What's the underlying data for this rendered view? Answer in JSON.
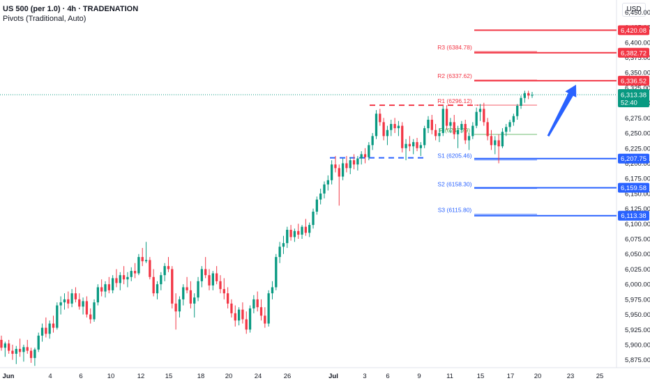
{
  "header": {
    "title": "US 500 (per 1.0) · 4h · TRADENATION",
    "subtitle": "Pivots (Traditional, Auto)"
  },
  "currency_button": "USD",
  "chart_data": {
    "type": "candlestick",
    "y_axis_ticks": [
      "5,875.00",
      "5,900.00",
      "5,925.00",
      "5,950.00",
      "5,975.00",
      "6,000.00",
      "6,025.00",
      "6,050.00",
      "6,075.00",
      "6,100.00",
      "6,125.00",
      "6,150.00",
      "6,175.00",
      "6,200.00",
      "6,225.00",
      "6,250.00",
      "6,275.00",
      "6,300.00",
      "6,325.00",
      "6,350.00",
      "6,375.00",
      "6,400.00",
      "6,425.00",
      "6,450.00"
    ],
    "y_tick_values": [
      5875,
      5900,
      5925,
      5950,
      5975,
      6000,
      6025,
      6050,
      6075,
      6100,
      6125,
      6150,
      6175,
      6200,
      6225,
      6250,
      6275,
      6300,
      6325,
      6350,
      6375,
      6400,
      6425,
      6450
    ],
    "ylim": [
      5862,
      6470
    ],
    "x_axis_labels": [
      "Jun",
      "4",
      "6",
      "10",
      "12",
      "15",
      "18",
      "20",
      "24",
      "26",
      "Jul",
      "3",
      "6",
      "9",
      "11",
      "15",
      "17",
      "20",
      "23",
      "25"
    ],
    "pivots": [
      {
        "label": "R3 (6384.78)",
        "value": 6384.78,
        "color": "#f23645"
      },
      {
        "label": "R2 (6337.62)",
        "value": 6337.62,
        "color": "#f23645"
      },
      {
        "label": "R1 (6296.12)",
        "value": 6296.12,
        "color": "#f23645"
      },
      {
        "label": "P (6247.79)",
        "value": 6247.79,
        "color": "#4caf50"
      },
      {
        "label": "S1 (6205.46)",
        "value": 6205.46,
        "color": "#2962ff"
      },
      {
        "label": "S2 (6158.30)",
        "value": 6158.3,
        "color": "#2962ff"
      },
      {
        "label": "S3 (6115.80)",
        "value": 6115.8,
        "color": "#2962ff"
      }
    ],
    "resistance_levels": [
      6420.08,
      6382.72,
      6336.52
    ],
    "support_levels": [
      6207.75,
      6159.58,
      6113.38
    ],
    "dashed_resistance": 6296,
    "dashed_support": 6209,
    "price_labels": [
      {
        "text": "6,420.08",
        "value": 6420.08,
        "color": "#f23645"
      },
      {
        "text": "6,382.72",
        "value": 6382.72,
        "color": "#f23645"
      },
      {
        "text": "6,336.52",
        "value": 6336.52,
        "color": "#f23645"
      },
      {
        "text": "6,207.75",
        "value": 6207.75,
        "color": "#2962ff"
      },
      {
        "text": "6,159.58",
        "value": 6159.58,
        "color": "#2962ff"
      },
      {
        "text": "6,113.38",
        "value": 6113.38,
        "color": "#2962ff"
      }
    ],
    "current_price": {
      "value": 6313.38,
      "text": "6,313.38",
      "countdown": "52:40",
      "color": "#089981"
    },
    "arrow": {
      "from": 6245,
      "to": 6330,
      "color": "#2962ff"
    },
    "candles": [
      {
        "o": 5908,
        "h": 5915,
        "l": 5890,
        "c": 5895
      },
      {
        "o": 5895,
        "h": 5905,
        "l": 5880,
        "c": 5902
      },
      {
        "o": 5902,
        "h": 5908,
        "l": 5885,
        "c": 5890
      },
      {
        "o": 5890,
        "h": 5900,
        "l": 5875,
        "c": 5885
      },
      {
        "o": 5885,
        "h": 5898,
        "l": 5868,
        "c": 5893
      },
      {
        "o": 5893,
        "h": 5910,
        "l": 5880,
        "c": 5888
      },
      {
        "o": 5888,
        "h": 5900,
        "l": 5872,
        "c": 5896
      },
      {
        "o": 5896,
        "h": 5908,
        "l": 5885,
        "c": 5890
      },
      {
        "o": 5890,
        "h": 5895,
        "l": 5870,
        "c": 5878
      },
      {
        "o": 5878,
        "h": 5895,
        "l": 5865,
        "c": 5892
      },
      {
        "o": 5892,
        "h": 5920,
        "l": 5888,
        "c": 5915
      },
      {
        "o": 5915,
        "h": 5935,
        "l": 5905,
        "c": 5928
      },
      {
        "o": 5928,
        "h": 5945,
        "l": 5912,
        "c": 5918
      },
      {
        "o": 5918,
        "h": 5940,
        "l": 5910,
        "c": 5935
      },
      {
        "o": 5935,
        "h": 5948,
        "l": 5920,
        "c": 5928
      },
      {
        "o": 5928,
        "h": 5970,
        "l": 5925,
        "c": 5965
      },
      {
        "o": 5965,
        "h": 5980,
        "l": 5950,
        "c": 5970
      },
      {
        "o": 5970,
        "h": 5985,
        "l": 5958,
        "c": 5975
      },
      {
        "o": 5975,
        "h": 5988,
        "l": 5960,
        "c": 5968
      },
      {
        "o": 5968,
        "h": 5992,
        "l": 5962,
        "c": 5985
      },
      {
        "o": 5985,
        "h": 5995,
        "l": 5970,
        "c": 5975
      },
      {
        "o": 5975,
        "h": 5985,
        "l": 5958,
        "c": 5963
      },
      {
        "o": 5963,
        "h": 5978,
        "l": 5950,
        "c": 5972
      },
      {
        "o": 5972,
        "h": 5980,
        "l": 5945,
        "c": 5950
      },
      {
        "o": 5950,
        "h": 5960,
        "l": 5935,
        "c": 5942
      },
      {
        "o": 5942,
        "h": 5975,
        "l": 5938,
        "c": 5970
      },
      {
        "o": 5970,
        "h": 6000,
        "l": 5965,
        "c": 5995
      },
      {
        "o": 5995,
        "h": 6008,
        "l": 5980,
        "c": 5988
      },
      {
        "o": 5988,
        "h": 6005,
        "l": 5978,
        "c": 6000
      },
      {
        "o": 6000,
        "h": 6012,
        "l": 5985,
        "c": 5990
      },
      {
        "o": 5990,
        "h": 6015,
        "l": 5985,
        "c": 6010
      },
      {
        "o": 6010,
        "h": 6025,
        "l": 5995,
        "c": 6002
      },
      {
        "o": 6002,
        "h": 6020,
        "l": 5990,
        "c": 6015
      },
      {
        "o": 6015,
        "h": 6030,
        "l": 6000,
        "c": 6008
      },
      {
        "o": 6008,
        "h": 6020,
        "l": 5995,
        "c": 6012
      },
      {
        "o": 6012,
        "h": 6028,
        "l": 6005,
        "c": 6022
      },
      {
        "o": 6022,
        "h": 6035,
        "l": 6010,
        "c": 6018
      },
      {
        "o": 6018,
        "h": 6050,
        "l": 6015,
        "c": 6045
      },
      {
        "o": 6045,
        "h": 6060,
        "l": 6030,
        "c": 6038
      },
      {
        "o": 6038,
        "h": 6070,
        "l": 6035,
        "c": 6040
      },
      {
        "o": 6040,
        "h": 6045,
        "l": 6008,
        "c": 6012
      },
      {
        "o": 6012,
        "h": 6025,
        "l": 5980,
        "c": 5985
      },
      {
        "o": 5985,
        "h": 6005,
        "l": 5975,
        "c": 6000
      },
      {
        "o": 6000,
        "h": 6020,
        "l": 5990,
        "c": 6015
      },
      {
        "o": 6015,
        "h": 6035,
        "l": 6005,
        "c": 6030
      },
      {
        "o": 6030,
        "h": 6045,
        "l": 6020,
        "c": 6025
      },
      {
        "o": 6025,
        "h": 6030,
        "l": 5960,
        "c": 5968
      },
      {
        "o": 5968,
        "h": 5985,
        "l": 5925,
        "c": 5955
      },
      {
        "o": 5955,
        "h": 5980,
        "l": 5945,
        "c": 5975
      },
      {
        "o": 5975,
        "h": 6000,
        "l": 5965,
        "c": 5995
      },
      {
        "o": 5995,
        "h": 6012,
        "l": 5985,
        "c": 5990
      },
      {
        "o": 5990,
        "h": 6005,
        "l": 5960,
        "c": 5968
      },
      {
        "o": 5968,
        "h": 5985,
        "l": 5945,
        "c": 5978
      },
      {
        "o": 5978,
        "h": 6012,
        "l": 5972,
        "c": 6005
      },
      {
        "o": 6005,
        "h": 6030,
        "l": 5995,
        "c": 6025
      },
      {
        "o": 6025,
        "h": 6045,
        "l": 6010,
        "c": 6015
      },
      {
        "o": 6015,
        "h": 6025,
        "l": 5990,
        "c": 5998
      },
      {
        "o": 5998,
        "h": 6022,
        "l": 5990,
        "c": 6018
      },
      {
        "o": 6018,
        "h": 6030,
        "l": 6000,
        "c": 6005
      },
      {
        "o": 6005,
        "h": 6015,
        "l": 5985,
        "c": 5992
      },
      {
        "o": 5992,
        "h": 6010,
        "l": 5975,
        "c": 5985
      },
      {
        "o": 5985,
        "h": 5995,
        "l": 5960,
        "c": 5968
      },
      {
        "o": 5968,
        "h": 5975,
        "l": 5945,
        "c": 5952
      },
      {
        "o": 5952,
        "h": 5965,
        "l": 5930,
        "c": 5940
      },
      {
        "o": 5940,
        "h": 5962,
        "l": 5932,
        "c": 5958
      },
      {
        "o": 5958,
        "h": 5970,
        "l": 5935,
        "c": 5942
      },
      {
        "o": 5942,
        "h": 5955,
        "l": 5918,
        "c": 5925
      },
      {
        "o": 5925,
        "h": 5965,
        "l": 5920,
        "c": 5960
      },
      {
        "o": 5960,
        "h": 5982,
        "l": 5952,
        "c": 5975
      },
      {
        "o": 5975,
        "h": 5988,
        "l": 5955,
        "c": 5962
      },
      {
        "o": 5962,
        "h": 5975,
        "l": 5940,
        "c": 5948
      },
      {
        "o": 5948,
        "h": 5962,
        "l": 5928,
        "c": 5935
      },
      {
        "o": 5935,
        "h": 5990,
        "l": 5930,
        "c": 5985
      },
      {
        "o": 5985,
        "h": 6005,
        "l": 5975,
        "c": 5995
      },
      {
        "o": 5995,
        "h": 6050,
        "l": 5990,
        "c": 6045
      },
      {
        "o": 6045,
        "h": 6070,
        "l": 6035,
        "c": 6062
      },
      {
        "o": 6062,
        "h": 6080,
        "l": 6050,
        "c": 6068
      },
      {
        "o": 6068,
        "h": 6095,
        "l": 6060,
        "c": 6090
      },
      {
        "o": 6090,
        "h": 6098,
        "l": 6072,
        "c": 6078
      },
      {
        "o": 6078,
        "h": 6092,
        "l": 6070,
        "c": 6088
      },
      {
        "o": 6088,
        "h": 6100,
        "l": 6075,
        "c": 6082
      },
      {
        "o": 6082,
        "h": 6098,
        "l": 6075,
        "c": 6095
      },
      {
        "o": 6095,
        "h": 6108,
        "l": 6080,
        "c": 6085
      },
      {
        "o": 6085,
        "h": 6102,
        "l": 6078,
        "c": 6098
      },
      {
        "o": 6098,
        "h": 6125,
        "l": 6092,
        "c": 6120
      },
      {
        "o": 6120,
        "h": 6145,
        "l": 6115,
        "c": 6140
      },
      {
        "o": 6140,
        "h": 6158,
        "l": 6132,
        "c": 6150
      },
      {
        "o": 6150,
        "h": 6170,
        "l": 6142,
        "c": 6165
      },
      {
        "o": 6165,
        "h": 6180,
        "l": 6155,
        "c": 6172
      },
      {
        "o": 6172,
        "h": 6205,
        "l": 6165,
        "c": 6198
      },
      {
        "o": 6198,
        "h": 6212,
        "l": 6185,
        "c": 6192
      },
      {
        "o": 6192,
        "h": 6198,
        "l": 6130,
        "c": 6178
      },
      {
        "o": 6178,
        "h": 6208,
        "l": 6172,
        "c": 6200
      },
      {
        "o": 6200,
        "h": 6212,
        "l": 6185,
        "c": 6192
      },
      {
        "o": 6192,
        "h": 6210,
        "l": 6182,
        "c": 6205
      },
      {
        "o": 6205,
        "h": 6215,
        "l": 6190,
        "c": 6198
      },
      {
        "o": 6198,
        "h": 6212,
        "l": 6188,
        "c": 6208
      },
      {
        "o": 6208,
        "h": 6220,
        "l": 6198,
        "c": 6215
      },
      {
        "o": 6215,
        "h": 6225,
        "l": 6200,
        "c": 6210
      },
      {
        "o": 6210,
        "h": 6235,
        "l": 6205,
        "c": 6230
      },
      {
        "o": 6230,
        "h": 6250,
        "l": 6222,
        "c": 6245
      },
      {
        "o": 6245,
        "h": 6288,
        "l": 6240,
        "c": 6282
      },
      {
        "o": 6282,
        "h": 6290,
        "l": 6262,
        "c": 6268
      },
      {
        "o": 6268,
        "h": 6275,
        "l": 6238,
        "c": 6245
      },
      {
        "o": 6245,
        "h": 6262,
        "l": 6230,
        "c": 6255
      },
      {
        "o": 6255,
        "h": 6272,
        "l": 6245,
        "c": 6265
      },
      {
        "o": 6265,
        "h": 6275,
        "l": 6250,
        "c": 6258
      },
      {
        "o": 6258,
        "h": 6270,
        "l": 6245,
        "c": 6262
      },
      {
        "o": 6262,
        "h": 6268,
        "l": 6218,
        "c": 6225
      },
      {
        "o": 6225,
        "h": 6240,
        "l": 6205,
        "c": 6232
      },
      {
        "o": 6232,
        "h": 6245,
        "l": 6220,
        "c": 6228
      },
      {
        "o": 6228,
        "h": 6240,
        "l": 6215,
        "c": 6235
      },
      {
        "o": 6235,
        "h": 6242,
        "l": 6220,
        "c": 6225
      },
      {
        "o": 6225,
        "h": 6235,
        "l": 6212,
        "c": 6230
      },
      {
        "o": 6230,
        "h": 6262,
        "l": 6225,
        "c": 6258
      },
      {
        "o": 6258,
        "h": 6278,
        "l": 6250,
        "c": 6272
      },
      {
        "o": 6272,
        "h": 6280,
        "l": 6248,
        "c": 6255
      },
      {
        "o": 6255,
        "h": 6265,
        "l": 6238,
        "c": 6245
      },
      {
        "o": 6245,
        "h": 6258,
        "l": 6235,
        "c": 6250
      },
      {
        "o": 6250,
        "h": 6295,
        "l": 6245,
        "c": 6290
      },
      {
        "o": 6290,
        "h": 6296,
        "l": 6255,
        "c": 6262
      },
      {
        "o": 6262,
        "h": 6275,
        "l": 6250,
        "c": 6268
      },
      {
        "o": 6268,
        "h": 6280,
        "l": 6240,
        "c": 6248
      },
      {
        "o": 6248,
        "h": 6262,
        "l": 6225,
        "c": 6255
      },
      {
        "o": 6255,
        "h": 6270,
        "l": 6250,
        "c": 6265
      },
      {
        "o": 6265,
        "h": 6272,
        "l": 6232,
        "c": 6238
      },
      {
        "o": 6238,
        "h": 6250,
        "l": 6222,
        "c": 6245
      },
      {
        "o": 6245,
        "h": 6268,
        "l": 6240,
        "c": 6262
      },
      {
        "o": 6262,
        "h": 6292,
        "l": 6258,
        "c": 6285
      },
      {
        "o": 6285,
        "h": 6298,
        "l": 6270,
        "c": 6290
      },
      {
        "o": 6290,
        "h": 6300,
        "l": 6262,
        "c": 6268
      },
      {
        "o": 6268,
        "h": 6275,
        "l": 6238,
        "c": 6245
      },
      {
        "o": 6245,
        "h": 6255,
        "l": 6222,
        "c": 6230
      },
      {
        "o": 6230,
        "h": 6245,
        "l": 6215,
        "c": 6238
      },
      {
        "o": 6238,
        "h": 6248,
        "l": 6200,
        "c": 6228
      },
      {
        "o": 6228,
        "h": 6258,
        "l": 6225,
        "c": 6252
      },
      {
        "o": 6252,
        "h": 6265,
        "l": 6245,
        "c": 6260
      },
      {
        "o": 6260,
        "h": 6272,
        "l": 6252,
        "c": 6268
      },
      {
        "o": 6268,
        "h": 6282,
        "l": 6262,
        "c": 6278
      },
      {
        "o": 6278,
        "h": 6298,
        "l": 6272,
        "c": 6295
      },
      {
        "o": 6295,
        "h": 6312,
        "l": 6290,
        "c": 6308
      },
      {
        "o": 6308,
        "h": 6320,
        "l": 6300,
        "c": 6316
      },
      {
        "o": 6316,
        "h": 6320,
        "l": 6306,
        "c": 6312
      },
      {
        "o": 6312,
        "h": 6318,
        "l": 6308,
        "c": 6313
      }
    ]
  }
}
